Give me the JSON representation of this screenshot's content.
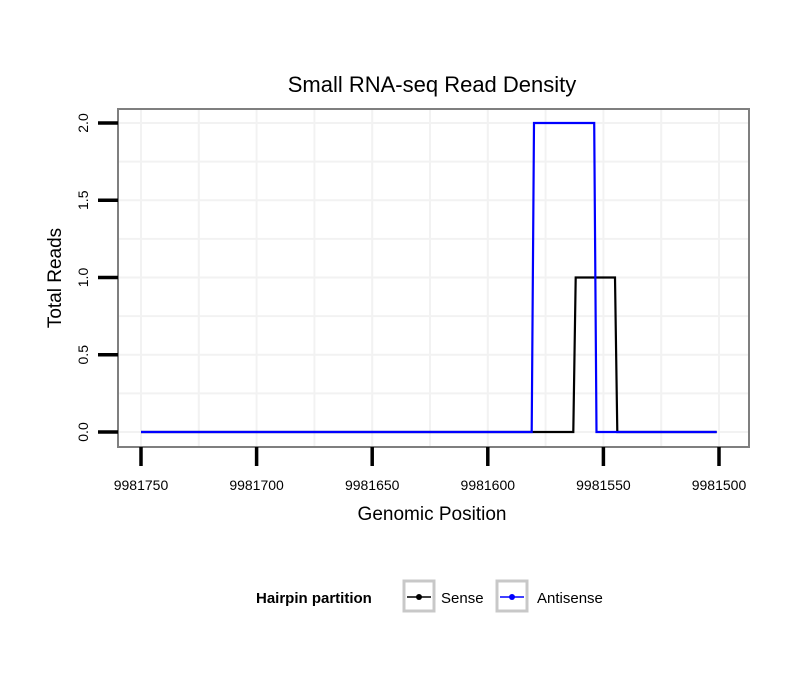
{
  "chart_data": {
    "type": "line",
    "title": "Small RNA-seq Read Density",
    "xlabel": "Genomic Position",
    "ylabel": "Total Reads",
    "xlim": [
      9981500,
      9981750
    ],
    "x_reversed": true,
    "ylim": [
      0,
      2
    ],
    "x_ticks": [
      9981750,
      9981700,
      9981650,
      9981600,
      9981550,
      9981500
    ],
    "x_tick_labels": [
      "9981750",
      "9981700",
      "9981650",
      "9981600",
      "9981550",
      "9981500"
    ],
    "y_ticks": [
      0,
      0.5,
      1,
      1.5,
      2
    ],
    "y_tick_labels": [
      "0.0",
      "0.5",
      "1.0",
      "1.5",
      "2.0"
    ],
    "grid": true,
    "legend": {
      "title": "Hairpin partition",
      "position": "bottom"
    },
    "series": [
      {
        "name": "Sense",
        "color": "#000000",
        "x": [
          9981750,
          9981563,
          9981562,
          9981545,
          9981544,
          9981501
        ],
        "y": [
          0,
          0,
          1,
          1,
          0,
          0
        ]
      },
      {
        "name": "Antisense",
        "color": "#0000ff",
        "x": [
          9981750,
          9981581,
          9981580,
          9981554,
          9981553,
          9981501
        ],
        "y": [
          0,
          0,
          2,
          2,
          0,
          0
        ]
      }
    ]
  }
}
